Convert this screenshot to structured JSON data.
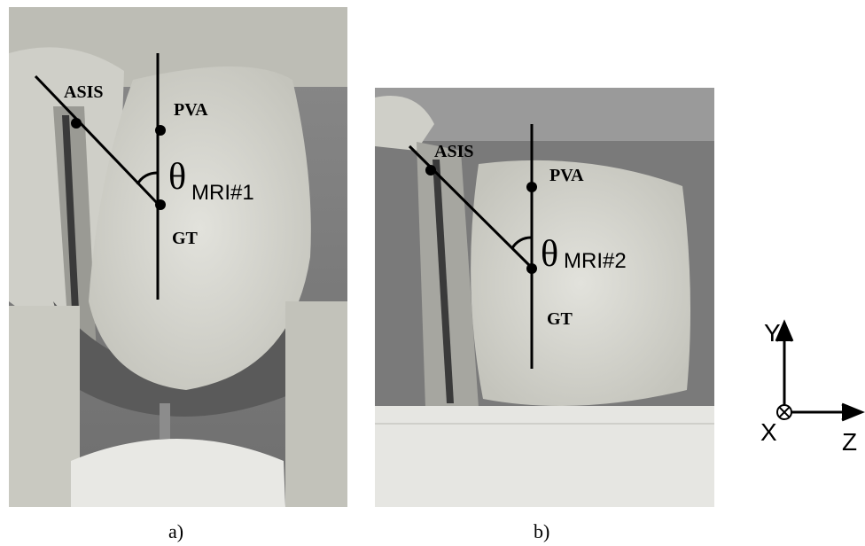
{
  "panels": [
    {
      "caption": "a)",
      "labels": {
        "asis": "ASIS",
        "pva": "PVA",
        "gt": "GT",
        "angle_symbol": "θ",
        "angle_subscript": "MRI#1"
      }
    },
    {
      "caption": "b)",
      "labels": {
        "asis": "ASIS",
        "pva": "PVA",
        "gt": "GT",
        "angle_symbol": "θ",
        "angle_subscript": "MRI#2"
      }
    }
  ],
  "axes": {
    "y": "Y",
    "x": "X",
    "z": "Z"
  }
}
